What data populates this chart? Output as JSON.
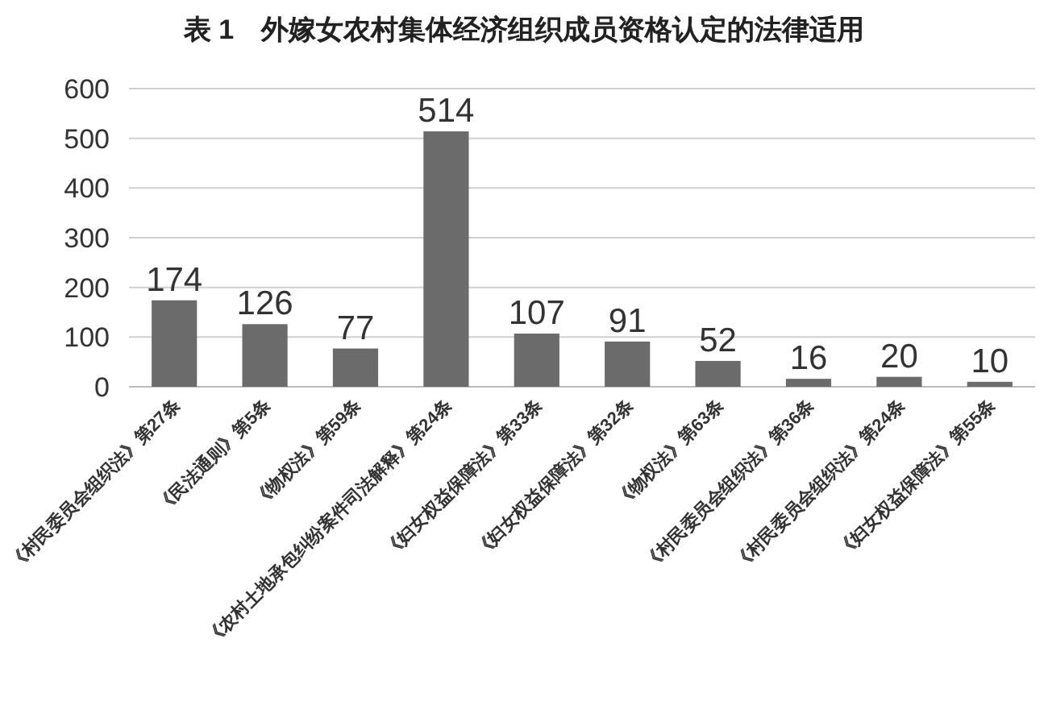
{
  "chart_data": {
    "type": "bar",
    "title": "表 1　外嫁女农村集体经济组织成员资格认定的法律适用",
    "categories": [
      "《村民委员会组织法》第27条",
      "《民法通则》第5条",
      "《物权法》第59条",
      "《农村土地承包纠纷案件司法解释》第24条",
      "《妇女权益保障法》第33条",
      "《妇女权益保障法》第32条",
      "《物权法》第63条",
      "《村民委员会组织法》第36条",
      "《村民委员会组织法》第24条",
      "《妇女权益保障法》第55条"
    ],
    "values": [
      174,
      126,
      77,
      514,
      107,
      91,
      52,
      16,
      20,
      10
    ],
    "color": "#6b6b6b",
    "ylim": [
      0,
      600
    ],
    "yticks": [
      0,
      100,
      200,
      300,
      400,
      500,
      600
    ],
    "grid": "y",
    "data_labels": true
  }
}
